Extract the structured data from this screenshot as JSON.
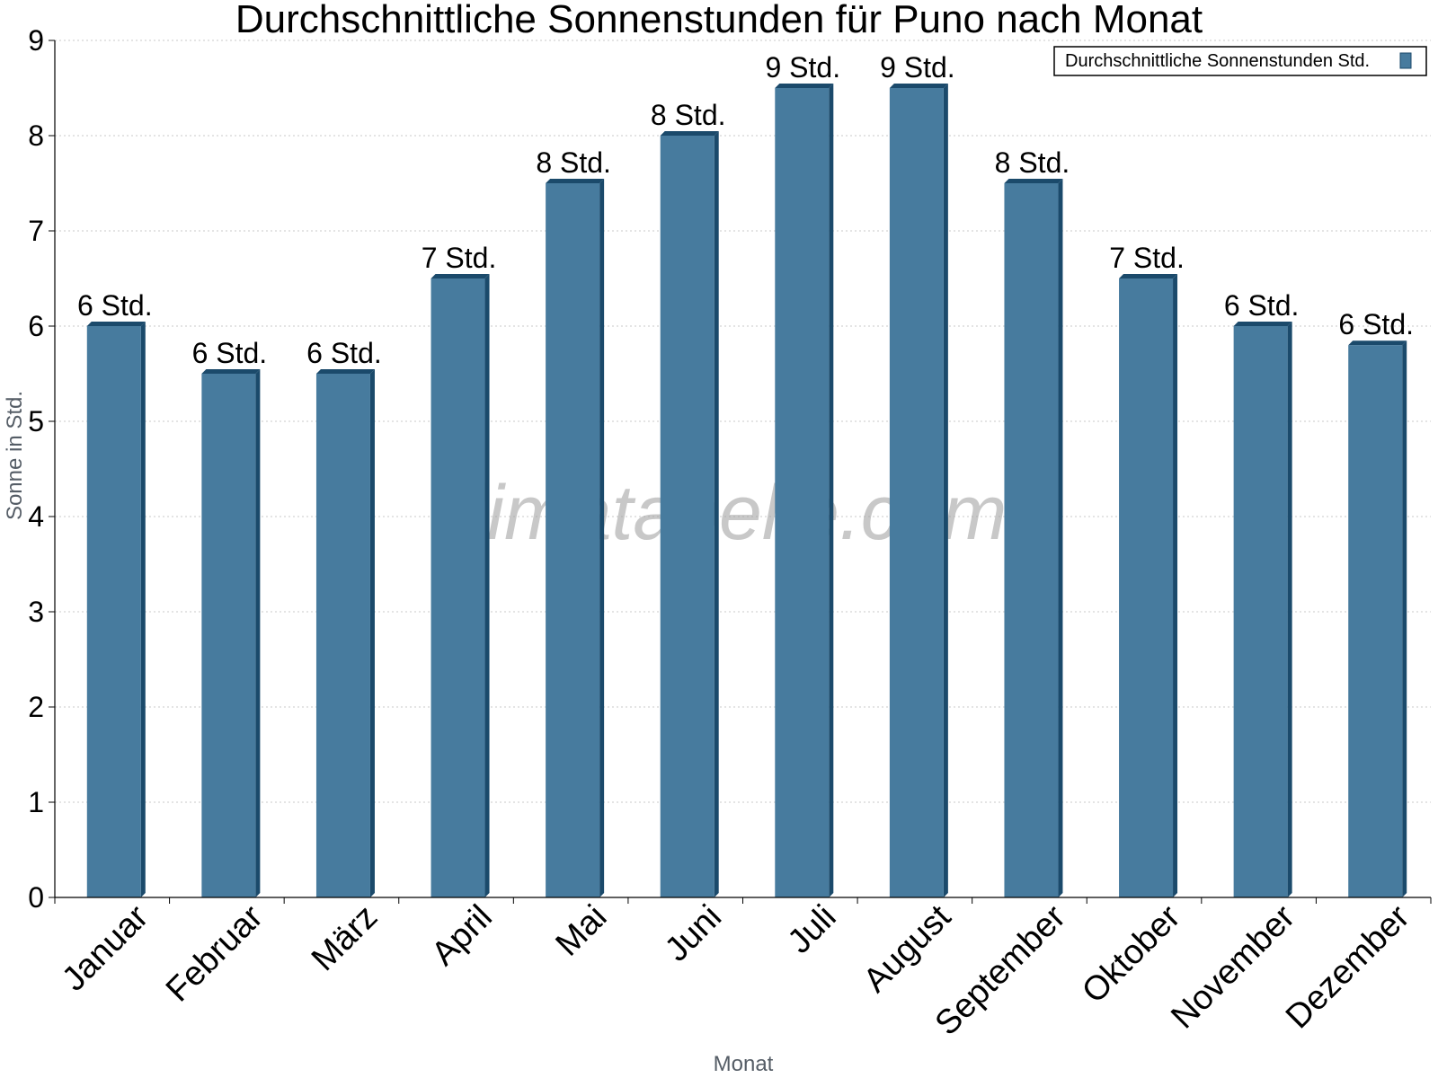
{
  "chart_data": {
    "type": "bar",
    "title": "Durchschnittliche Sonnenstunden für Puno nach Monat",
    "xlabel": "Monat",
    "ylabel": "Sonne in Std.",
    "ylim": [
      0,
      9
    ],
    "yticks": [
      0,
      1,
      2,
      3,
      4,
      5,
      6,
      7,
      8,
      9
    ],
    "grid": true,
    "legend_position": "top-right",
    "categories": [
      "Januar",
      "Februar",
      "März",
      "April",
      "Mai",
      "Juni",
      "Juli",
      "August",
      "September",
      "Oktober",
      "November",
      "Dezember"
    ],
    "series": [
      {
        "name": "Durchschnittliche Sonnenstunden Std.",
        "color": "#477b9e",
        "edge_color": "#1b4a6b",
        "values": [
          6.0,
          5.5,
          5.5,
          6.5,
          7.5,
          8.0,
          8.5,
          8.5,
          7.5,
          6.5,
          6.0,
          5.8
        ],
        "labels": [
          "6 Std.",
          "6 Std.",
          "6 Std.",
          "7 Std.",
          "8 Std.",
          "8 Std.",
          "9 Std.",
          "9 Std.",
          "8 Std.",
          "7 Std.",
          "6 Std.",
          "6 Std."
        ]
      }
    ]
  },
  "watermark": "klimatabelle.com"
}
